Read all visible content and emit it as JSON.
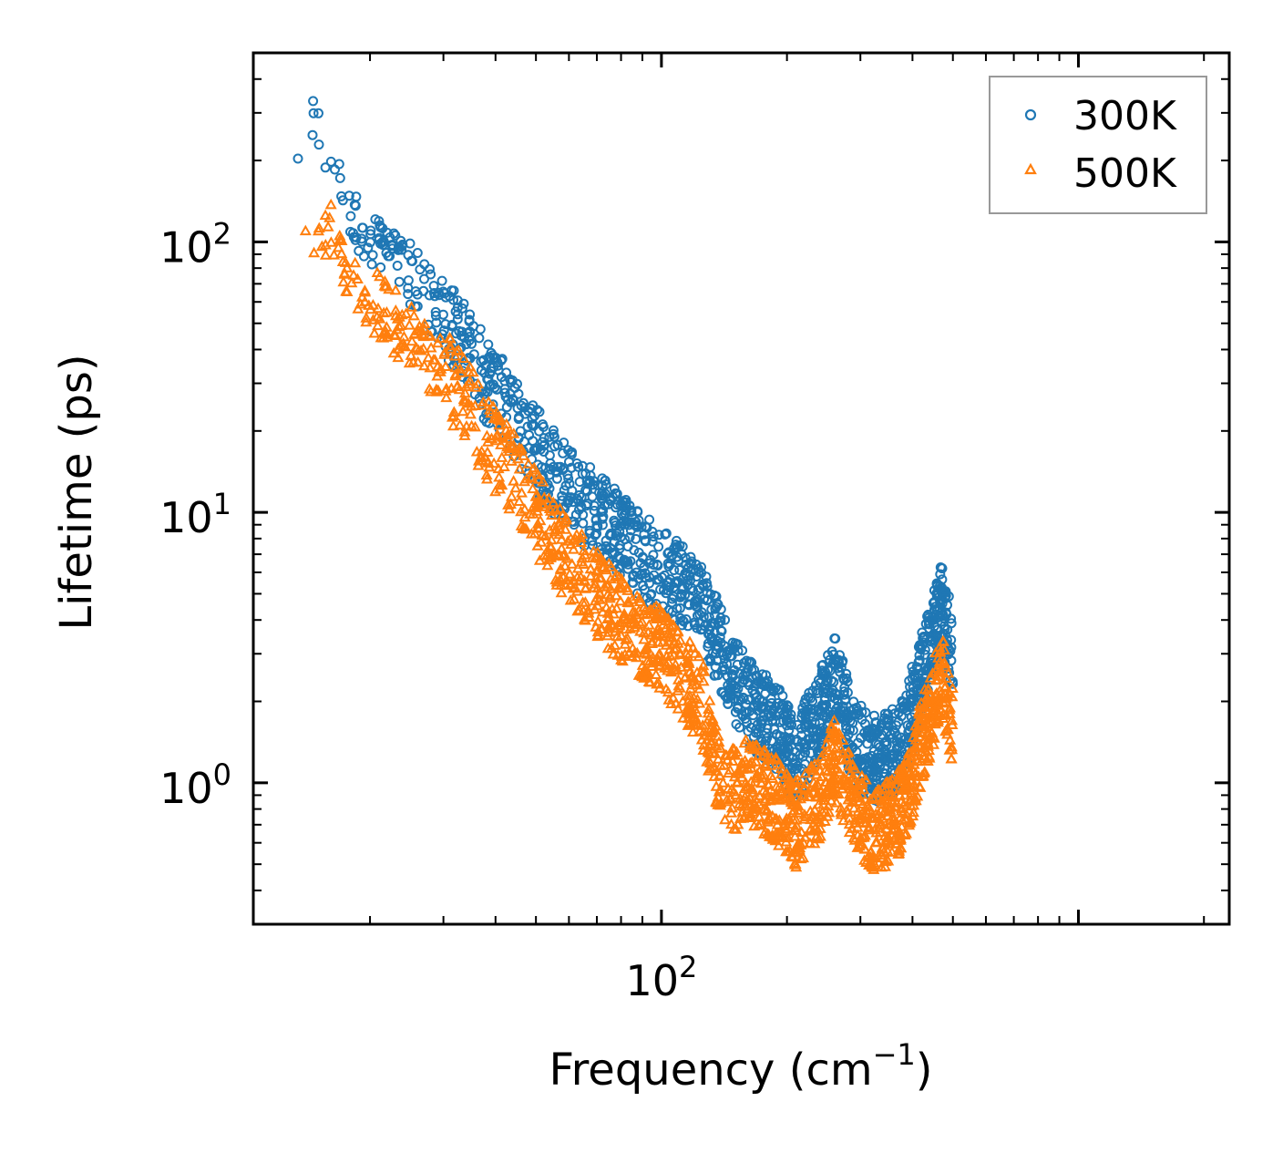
{
  "chart_data": {
    "type": "scatter",
    "title": "",
    "xlabel": "Frequency (cm",
    "xlabel_sup": "−1",
    "xlabel_end": ")",
    "ylabel": "Lifetime (ps)",
    "xscale": "log",
    "yscale": "log",
    "xlim": [
      10.5,
      2300
    ],
    "ylim": [
      0.3,
      500
    ],
    "x_ticks": [
      {
        "value": 100,
        "base": "10",
        "exp": "2"
      }
    ],
    "y_ticks": [
      {
        "value": 1,
        "base": "10",
        "exp": "0"
      },
      {
        "value": 10,
        "base": "10",
        "exp": "1"
      },
      {
        "value": 100,
        "base": "10",
        "exp": "2"
      }
    ],
    "legend": {
      "position": "top-right"
    },
    "series": [
      {
        "name": "300K",
        "marker": "circle",
        "color": "#1f77b4",
        "anchors": [
          [
            13,
            150
          ],
          [
            14,
            310
          ],
          [
            15,
            300
          ],
          [
            16,
            220
          ],
          [
            17,
            165
          ],
          [
            19,
            115
          ],
          [
            21,
            95
          ],
          [
            25,
            75
          ],
          [
            27,
            65
          ],
          [
            30,
            55
          ],
          [
            33,
            45
          ],
          [
            36,
            35
          ],
          [
            40,
            28
          ],
          [
            45,
            22
          ],
          [
            50,
            17
          ],
          [
            55,
            14
          ],
          [
            60,
            12
          ],
          [
            70,
            10
          ],
          [
            80,
            8
          ],
          [
            90,
            7
          ],
          [
            100,
            6
          ],
          [
            110,
            5.5
          ],
          [
            125,
            4.5
          ],
          [
            140,
            3
          ],
          [
            160,
            2
          ],
          [
            190,
            1.6
          ],
          [
            210,
            1.2
          ],
          [
            240,
            1.8
          ],
          [
            260,
            2.5
          ],
          [
            290,
            1.4
          ],
          [
            330,
            1.2
          ],
          [
            380,
            1.4
          ],
          [
            420,
            2.5
          ],
          [
            470,
            4.5
          ],
          [
            500,
            3
          ]
        ]
      },
      {
        "name": "500K",
        "marker": "triangle",
        "color": "#ff7f0e",
        "anchors": [
          [
            13,
            85
          ],
          [
            14,
            110
          ],
          [
            15,
            100
          ],
          [
            16,
            120
          ],
          [
            17,
            80
          ],
          [
            19,
            68
          ],
          [
            21,
            58
          ],
          [
            25,
            44
          ],
          [
            27,
            38
          ],
          [
            30,
            33
          ],
          [
            33,
            28
          ],
          [
            36,
            22
          ],
          [
            40,
            17
          ],
          [
            45,
            13
          ],
          [
            50,
            10
          ],
          [
            55,
            8
          ],
          [
            60,
            6.5
          ],
          [
            70,
            5
          ],
          [
            80,
            4
          ],
          [
            90,
            3.5
          ],
          [
            100,
            3
          ],
          [
            110,
            2.6
          ],
          [
            125,
            2
          ],
          [
            140,
            0.9
          ],
          [
            160,
            1.0
          ],
          [
            190,
            0.85
          ],
          [
            210,
            0.7
          ],
          [
            240,
            0.9
          ],
          [
            260,
            1.2
          ],
          [
            290,
            0.8
          ],
          [
            330,
            0.65
          ],
          [
            380,
            0.8
          ],
          [
            420,
            1.4
          ],
          [
            470,
            2.5
          ],
          [
            500,
            1.6
          ]
        ]
      }
    ]
  }
}
